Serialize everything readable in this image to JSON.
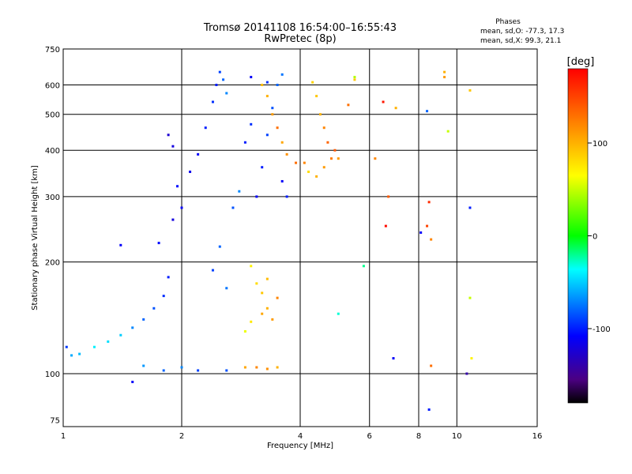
{
  "chart_data": {
    "type": "scatter",
    "title": "Tromsø 20141108 16:54:00–16:55:43",
    "subtitle": "RwPretec (8p)",
    "xlabel": "Frequency [MHz]",
    "ylabel": "Stationary phase Virtual Height [km]",
    "x_scale": "log",
    "y_scale": "log",
    "xlim": [
      1,
      16
    ],
    "ylim": [
      72,
      750
    ],
    "x_ticks": [
      1,
      2,
      4,
      6,
      8,
      10,
      16
    ],
    "x_tick_labels": [
      "1",
      "2",
      "4",
      "6",
      "8",
      "10",
      "16"
    ],
    "x_grid_lines": [
      2,
      4,
      6,
      8,
      10
    ],
    "y_ticks": [
      75,
      100,
      200,
      300,
      400,
      500,
      600,
      750
    ],
    "y_tick_labels": [
      "75",
      "100",
      "200",
      "300",
      "400",
      "500",
      "600",
      "750"
    ],
    "y_grid_lines": [
      100,
      200,
      300,
      400,
      500,
      600
    ],
    "grid": true,
    "stats": {
      "heading": "Phases",
      "o_line": "mean, sd,O: -77.3, 17.3",
      "x_line": "mean, sd,X:  99.3, 21.1"
    },
    "colorbar": {
      "label": "[deg]",
      "min": -180,
      "max": 180,
      "ticks": [
        100,
        0,
        -100
      ],
      "tick_labels": [
        "100",
        "0",
        "-100"
      ],
      "colormap": "rainbow"
    },
    "series": [
      {
        "points": [
          [
            1.02,
            118,
            -92
          ],
          [
            1.05,
            112,
            -60
          ],
          [
            1.1,
            113,
            -55
          ],
          [
            1.2,
            118,
            -40
          ],
          [
            1.3,
            122,
            -45
          ],
          [
            1.4,
            127,
            -50
          ],
          [
            1.5,
            133,
            -70
          ],
          [
            1.6,
            140,
            -80
          ],
          [
            1.7,
            150,
            -85
          ],
          [
            1.8,
            162,
            -95
          ],
          [
            1.4,
            222,
            -110
          ],
          [
            1.75,
            225,
            -105
          ],
          [
            1.85,
            182,
            -100
          ],
          [
            1.9,
            260,
            -120
          ],
          [
            1.95,
            320,
            -105
          ],
          [
            1.9,
            410,
            -120
          ],
          [
            1.85,
            440,
            -125
          ],
          [
            2.0,
            280,
            -110
          ],
          [
            2.1,
            350,
            -115
          ],
          [
            2.2,
            390,
            -110
          ],
          [
            2.3,
            460,
            -100
          ],
          [
            2.4,
            540,
            -95
          ],
          [
            2.45,
            600,
            -100
          ],
          [
            2.5,
            650,
            -90
          ],
          [
            2.55,
            620,
            -80
          ],
          [
            2.6,
            570,
            -70
          ],
          [
            2.4,
            190,
            -90
          ],
          [
            2.5,
            220,
            -80
          ],
          [
            2.6,
            170,
            -75
          ],
          [
            2.7,
            280,
            -85
          ],
          [
            2.8,
            310,
            -70
          ],
          [
            2.9,
            420,
            -100
          ],
          [
            3.0,
            470,
            -95
          ],
          [
            3.1,
            300,
            -110
          ],
          [
            3.2,
            360,
            -100
          ],
          [
            3.3,
            440,
            -90
          ],
          [
            3.4,
            520,
            -85
          ],
          [
            3.5,
            600,
            -80
          ],
          [
            3.6,
            640,
            -75
          ],
          [
            3.3,
            610,
            -95
          ],
          [
            3.0,
            630,
            -110
          ],
          [
            3.6,
            330,
            -110
          ],
          [
            3.7,
            300,
            -100
          ],
          [
            2.6,
            102,
            -85
          ],
          [
            2.2,
            102,
            -90
          ],
          [
            2.0,
            104,
            -70
          ],
          [
            1.8,
            102,
            -80
          ],
          [
            1.6,
            105,
            -65
          ],
          [
            1.5,
            95,
            -110
          ]
        ]
      },
      {
        "points": [
          [
            3.0,
            195,
            70
          ],
          [
            3.1,
            175,
            80
          ],
          [
            3.2,
            165,
            90
          ],
          [
            3.3,
            150,
            100
          ],
          [
            3.4,
            140,
            110
          ],
          [
            3.5,
            160,
            120
          ],
          [
            3.2,
            145,
            105
          ],
          [
            3.3,
            180,
            95
          ],
          [
            3.0,
            138,
            75
          ],
          [
            2.9,
            130,
            60
          ],
          [
            2.9,
            104,
            105
          ],
          [
            3.1,
            104,
            120
          ],
          [
            3.3,
            103,
            115
          ],
          [
            3.5,
            104,
            100
          ],
          [
            4.2,
            350,
            80
          ],
          [
            4.4,
            340,
            100
          ],
          [
            4.6,
            360,
            110
          ],
          [
            4.8,
            380,
            125
          ],
          [
            4.7,
            420,
            135
          ],
          [
            4.6,
            460,
            120
          ],
          [
            4.5,
            500,
            100
          ],
          [
            4.4,
            560,
            90
          ],
          [
            4.3,
            610,
            85
          ],
          [
            4.9,
            400,
            140
          ],
          [
            5.0,
            380,
            110
          ],
          [
            4.1,
            370,
            120
          ],
          [
            3.9,
            370,
            130
          ],
          [
            3.7,
            390,
            115
          ],
          [
            3.6,
            420,
            105
          ],
          [
            3.5,
            460,
            130
          ],
          [
            3.4,
            500,
            110
          ],
          [
            3.3,
            560,
            100
          ],
          [
            3.2,
            600,
            95
          ],
          [
            5.3,
            530,
            130
          ],
          [
            5.5,
            620,
            90
          ],
          [
            6.2,
            380,
            120
          ],
          [
            6.5,
            540,
            170
          ],
          [
            6.6,
            250,
            175
          ],
          [
            6.7,
            300,
            140
          ],
          [
            7.0,
            520,
            100
          ],
          [
            8.4,
            250,
            150
          ],
          [
            8.5,
            290,
            160
          ],
          [
            8.6,
            230,
            120
          ],
          [
            8.6,
            105,
            130
          ],
          [
            9.3,
            650,
            100
          ],
          [
            9.3,
            630,
            110
          ],
          [
            9.5,
            450,
            50
          ],
          [
            10.8,
            580,
            90
          ],
          [
            10.8,
            160,
            50
          ],
          [
            10.9,
            110,
            70
          ],
          [
            5.8,
            195,
            -20
          ],
          [
            5.5,
            630,
            45
          ],
          [
            8.4,
            510,
            -80
          ],
          [
            8.1,
            240,
            -110
          ],
          [
            6.9,
            110,
            -110
          ],
          [
            5.0,
            145,
            -30
          ],
          [
            8.5,
            80,
            -100
          ],
          [
            10.8,
            280,
            -100
          ],
          [
            10.6,
            100,
            -140
          ]
        ]
      }
    ]
  }
}
